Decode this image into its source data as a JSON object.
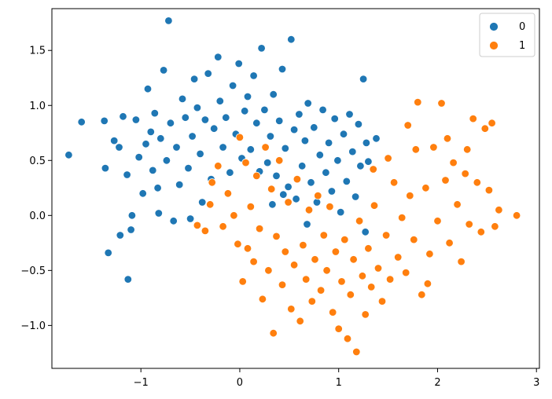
{
  "chart_data": {
    "type": "scatter",
    "title": "",
    "xlabel": "",
    "ylabel": "",
    "xlim": [
      -1.9,
      3.03
    ],
    "ylim": [
      -1.39,
      1.88
    ],
    "xticks": [
      -1,
      0,
      1,
      2,
      3
    ],
    "xtick_labels": [
      "−1",
      "0",
      "1",
      "2",
      "3"
    ],
    "yticks": [
      -1.0,
      -0.5,
      0.0,
      0.5,
      1.0,
      1.5
    ],
    "ytick_labels": [
      "−1.0",
      "−0.5",
      "0.0",
      "0.5",
      "1.0",
      "1.5"
    ],
    "grid": false,
    "legend": {
      "placement": "top-right",
      "entries": [
        "0",
        "1"
      ]
    },
    "series": [
      {
        "name": "0",
        "color": "#1f77b4",
        "points": [
          [
            -1.73,
            0.55
          ],
          [
            -1.6,
            0.85
          ],
          [
            -1.37,
            0.86
          ],
          [
            -1.36,
            0.43
          ],
          [
            -1.33,
            -0.34
          ],
          [
            -1.27,
            0.68
          ],
          [
            -1.22,
            0.62
          ],
          [
            -1.21,
            -0.18
          ],
          [
            -1.18,
            0.9
          ],
          [
            -1.14,
            0.37
          ],
          [
            -1.13,
            -0.58
          ],
          [
            -1.1,
            -0.13
          ],
          [
            -1.09,
            0.0
          ],
          [
            -1.05,
            0.87
          ],
          [
            -1.02,
            0.53
          ],
          [
            -0.98,
            0.2
          ],
          [
            -0.95,
            0.65
          ],
          [
            -0.93,
            1.15
          ],
          [
            -0.9,
            0.76
          ],
          [
            -0.88,
            0.41
          ],
          [
            -0.86,
            0.93
          ],
          [
            -0.83,
            0.25
          ],
          [
            -0.82,
            0.02
          ],
          [
            -0.8,
            0.7
          ],
          [
            -0.77,
            1.32
          ],
          [
            -0.74,
            0.5
          ],
          [
            -0.72,
            1.77
          ],
          [
            -0.7,
            0.84
          ],
          [
            -0.67,
            -0.05
          ],
          [
            -0.64,
            0.62
          ],
          [
            -0.61,
            0.28
          ],
          [
            -0.58,
            1.06
          ],
          [
            -0.55,
            0.89
          ],
          [
            -0.52,
            0.43
          ],
          [
            -0.5,
            -0.03
          ],
          [
            -0.48,
            0.72
          ],
          [
            -0.46,
            1.24
          ],
          [
            -0.43,
            0.98
          ],
          [
            -0.4,
            0.56
          ],
          [
            -0.38,
            0.12
          ],
          [
            -0.35,
            0.87
          ],
          [
            -0.32,
            1.29
          ],
          [
            -0.29,
            0.33
          ],
          [
            -0.26,
            0.79
          ],
          [
            -0.22,
            1.44
          ],
          [
            -0.2,
            1.04
          ],
          [
            -0.17,
            0.62
          ],
          [
            -0.14,
            0.89
          ],
          [
            -0.1,
            0.39
          ],
          [
            -0.07,
            1.18
          ],
          [
            -0.04,
            0.74
          ],
          [
            -0.01,
            1.38
          ],
          [
            0.02,
            0.52
          ],
          [
            0.05,
            0.95
          ],
          [
            0.08,
            1.08
          ],
          [
            0.11,
            0.6
          ],
          [
            0.14,
            1.27
          ],
          [
            0.17,
            0.84
          ],
          [
            0.2,
            0.4
          ],
          [
            0.22,
            1.52
          ],
          [
            0.25,
            0.96
          ],
          [
            0.28,
            0.48
          ],
          [
            0.31,
            0.72
          ],
          [
            0.34,
            1.1
          ],
          [
            0.37,
            0.36
          ],
          [
            0.4,
            0.86
          ],
          [
            0.43,
            1.33
          ],
          [
            0.46,
            0.61
          ],
          [
            0.49,
            0.26
          ],
          [
            0.52,
            1.6
          ],
          [
            0.55,
            0.78
          ],
          [
            0.57,
            0.15
          ],
          [
            0.6,
            0.92
          ],
          [
            0.63,
            0.45
          ],
          [
            0.66,
            0.68
          ],
          [
            0.69,
            1.02
          ],
          [
            0.72,
            0.3
          ],
          [
            0.75,
            0.8
          ],
          [
            0.78,
            0.12
          ],
          [
            0.81,
            0.55
          ],
          [
            0.84,
            0.96
          ],
          [
            0.87,
            0.39
          ],
          [
            0.9,
            0.66
          ],
          [
            0.93,
            0.22
          ],
          [
            0.96,
            0.88
          ],
          [
            0.99,
            0.5
          ],
          [
            1.02,
            0.03
          ],
          [
            1.05,
            0.74
          ],
          [
            1.08,
            0.31
          ],
          [
            1.11,
            0.92
          ],
          [
            1.14,
            0.58
          ],
          [
            1.17,
            0.17
          ],
          [
            1.2,
            0.83
          ],
          [
            1.22,
            0.45
          ],
          [
            1.25,
            1.24
          ],
          [
            1.27,
            -0.15
          ],
          [
            1.28,
            0.66
          ],
          [
            1.3,
            0.49
          ],
          [
            1.38,
            0.7
          ],
          [
            0.33,
            0.1
          ],
          [
            0.44,
            0.19
          ],
          [
            0.68,
            -0.08
          ]
        ]
      },
      {
        "name": "1",
        "color": "#ff7f0e",
        "points": [
          [
            -0.43,
            -0.09
          ],
          [
            -0.35,
            -0.14
          ],
          [
            -0.3,
            0.1
          ],
          [
            -0.28,
            0.3
          ],
          [
            -0.22,
            0.45
          ],
          [
            -0.17,
            -0.1
          ],
          [
            -0.12,
            0.2
          ],
          [
            -0.06,
            0.0
          ],
          [
            -0.02,
            -0.26
          ],
          [
            0.0,
            0.71
          ],
          [
            0.03,
            -0.6
          ],
          [
            0.06,
            0.48
          ],
          [
            0.08,
            -0.3
          ],
          [
            0.11,
            0.08
          ],
          [
            0.14,
            -0.42
          ],
          [
            0.17,
            0.36
          ],
          [
            0.2,
            -0.12
          ],
          [
            0.23,
            -0.76
          ],
          [
            0.26,
            0.62
          ],
          [
            0.29,
            -0.5
          ],
          [
            0.32,
            0.24
          ],
          [
            0.34,
            -1.07
          ],
          [
            0.37,
            -0.19
          ],
          [
            0.4,
            0.5
          ],
          [
            0.43,
            -0.63
          ],
          [
            0.46,
            -0.33
          ],
          [
            0.49,
            0.12
          ],
          [
            0.52,
            -0.85
          ],
          [
            0.55,
            -0.45
          ],
          [
            0.58,
            0.33
          ],
          [
            0.61,
            -0.96
          ],
          [
            0.64,
            -0.27
          ],
          [
            0.67,
            -0.58
          ],
          [
            0.7,
            0.05
          ],
          [
            0.73,
            -0.78
          ],
          [
            0.76,
            -0.4
          ],
          [
            0.79,
            0.18
          ],
          [
            0.82,
            -0.68
          ],
          [
            0.85,
            -0.18
          ],
          [
            0.88,
            -0.5
          ],
          [
            0.91,
            0.08
          ],
          [
            0.94,
            -0.88
          ],
          [
            0.97,
            -0.33
          ],
          [
            1.0,
            -1.03
          ],
          [
            1.03,
            -0.6
          ],
          [
            1.06,
            -0.22
          ],
          [
            1.09,
            -1.12
          ],
          [
            1.12,
            -0.72
          ],
          [
            1.15,
            -0.4
          ],
          [
            1.18,
            -1.24
          ],
          [
            1.21,
            -0.05
          ],
          [
            1.24,
            -0.55
          ],
          [
            1.27,
            -0.9
          ],
          [
            1.3,
            -0.3
          ],
          [
            1.33,
            -0.65
          ],
          [
            1.36,
            0.09
          ],
          [
            1.4,
            -0.48
          ],
          [
            1.44,
            -0.78
          ],
          [
            1.48,
            -0.18
          ],
          [
            1.52,
            -0.58
          ],
          [
            1.56,
            0.3
          ],
          [
            1.6,
            -0.38
          ],
          [
            1.64,
            -0.02
          ],
          [
            1.68,
            -0.52
          ],
          [
            1.72,
            0.18
          ],
          [
            1.76,
            -0.22
          ],
          [
            1.8,
            1.03
          ],
          [
            1.84,
            -0.72
          ],
          [
            1.88,
            0.25
          ],
          [
            1.92,
            -0.35
          ],
          [
            1.96,
            0.62
          ],
          [
            2.0,
            -0.05
          ],
          [
            2.04,
            1.02
          ],
          [
            2.08,
            0.32
          ],
          [
            2.12,
            -0.25
          ],
          [
            2.16,
            0.48
          ],
          [
            2.2,
            0.1
          ],
          [
            2.24,
            -0.42
          ],
          [
            2.28,
            0.38
          ],
          [
            2.32,
            -0.08
          ],
          [
            2.36,
            0.88
          ],
          [
            2.4,
            0.3
          ],
          [
            2.44,
            -0.15
          ],
          [
            2.48,
            0.79
          ],
          [
            2.52,
            0.23
          ],
          [
            2.55,
            0.84
          ],
          [
            2.58,
            -0.1
          ],
          [
            2.62,
            0.05
          ],
          [
            2.8,
            0.0
          ],
          [
            1.78,
            0.6
          ],
          [
            1.5,
            0.52
          ],
          [
            1.35,
            0.42
          ],
          [
            1.9,
            -0.62
          ],
          [
            2.1,
            0.7
          ],
          [
            1.7,
            0.82
          ],
          [
            2.3,
            0.6
          ]
        ]
      }
    ]
  }
}
